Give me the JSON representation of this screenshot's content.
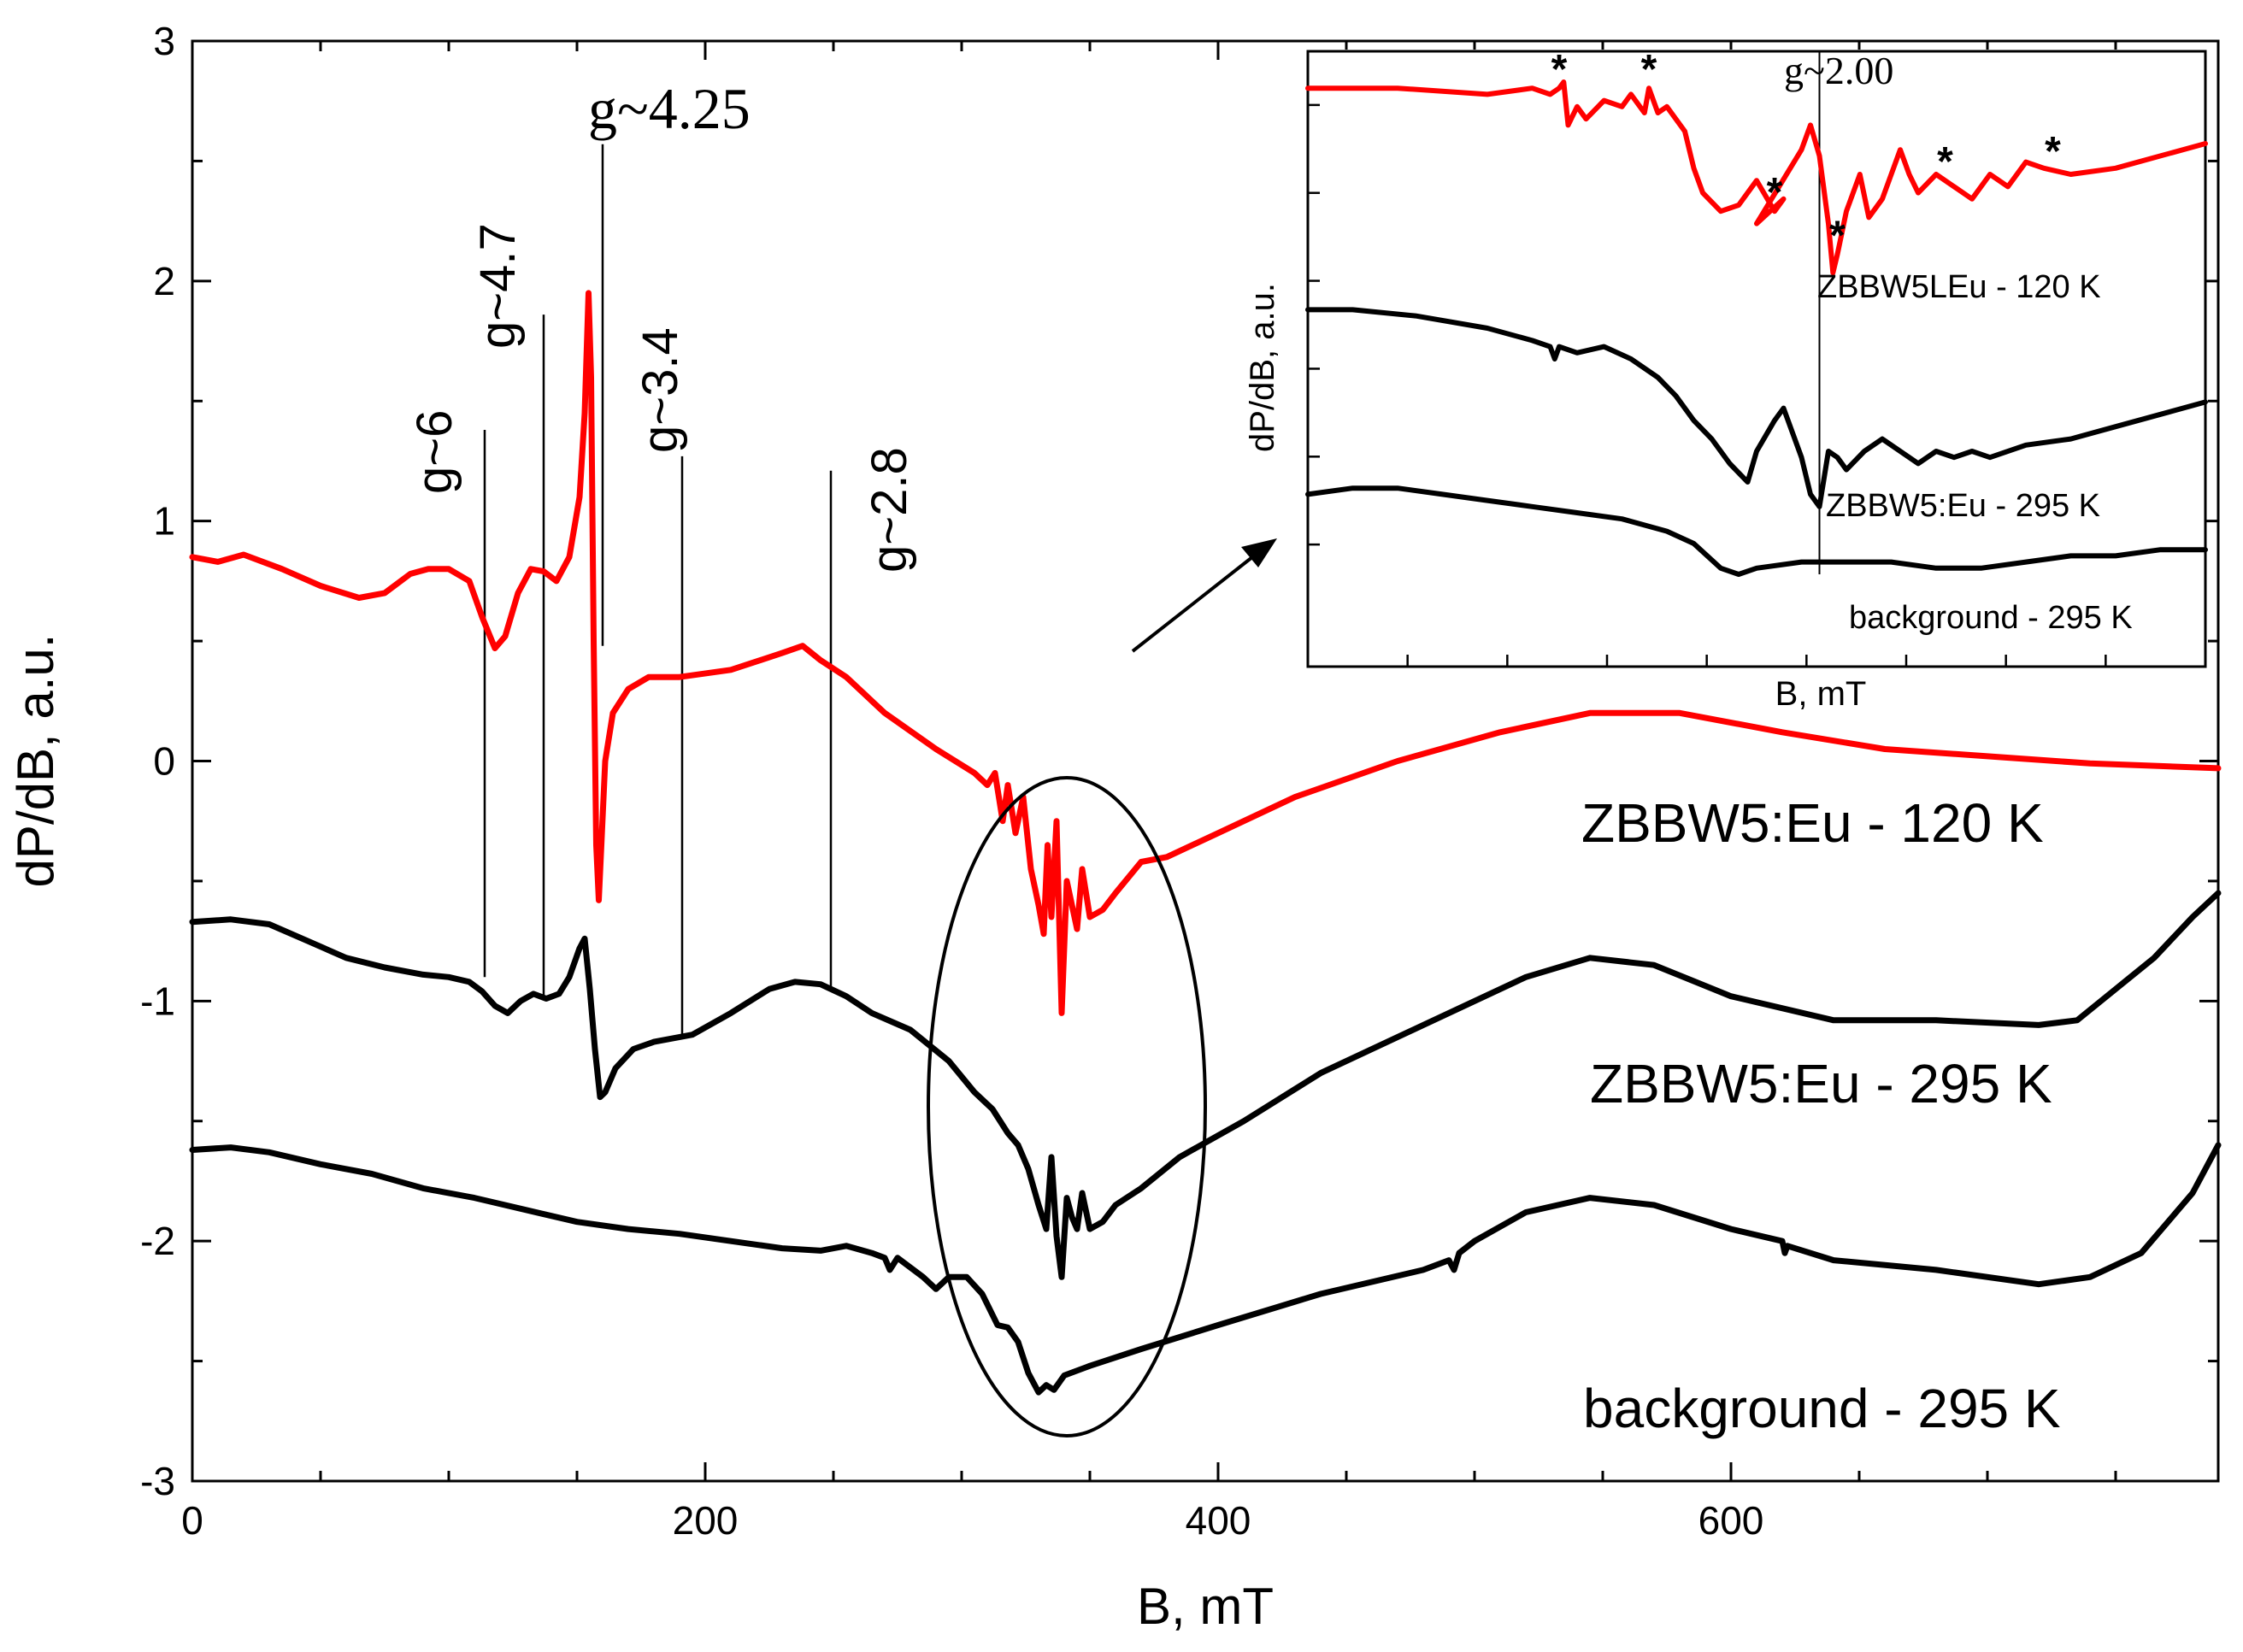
{
  "chart_data": [
    {
      "type": "line",
      "role": "main",
      "xlabel": "B, mT",
      "ylabel": "dP/dB, a.u.",
      "xlim": [
        0,
        790
      ],
      "ylim": [
        -3,
        3
      ],
      "xticks": [
        0,
        200,
        400,
        600
      ],
      "xtick_labels": [
        "0",
        "200",
        "400",
        "600"
      ],
      "yticks": [
        -3,
        -2,
        -1,
        0,
        1,
        2,
        3
      ],
      "ytick_labels": [
        "-3",
        "-2",
        "-1",
        "0",
        "1",
        "2",
        "3"
      ],
      "grid": false,
      "legend": "labels placed beside curves",
      "series": [
        {
          "name": "ZBBW5:Eu - 120 K",
          "color": "#ff0000",
          "x": [
            0,
            10,
            20,
            35,
            50,
            65,
            75,
            85,
            92,
            100,
            108,
            113,
            118,
            122,
            127,
            132,
            137,
            142,
            147,
            151,
            153,
            154.5,
            155.5,
            156.5,
            157.5,
            158.5,
            159.5,
            161,
            164,
            170,
            178,
            190,
            210,
            230,
            238,
            245,
            255,
            270,
            290,
            305,
            310,
            313,
            316,
            318,
            321,
            324,
            327,
            330,
            332,
            333.5,
            335,
            337,
            339,
            341,
            343,
            345,
            347,
            350,
            355,
            360,
            370,
            380,
            400,
            430,
            470,
            510,
            545,
            580,
            620,
            660,
            700,
            740,
            790
          ],
          "values": [
            0.85,
            0.83,
            0.86,
            0.8,
            0.73,
            0.68,
            0.7,
            0.78,
            0.8,
            0.8,
            0.75,
            0.6,
            0.47,
            0.52,
            0.7,
            0.8,
            0.79,
            0.75,
            0.85,
            1.1,
            1.45,
            1.95,
            1.6,
            0.5,
            -0.35,
            -0.58,
            -0.35,
            0.0,
            0.2,
            0.3,
            0.35,
            0.35,
            0.38,
            0.45,
            0.48,
            0.42,
            0.35,
            0.2,
            0.05,
            -0.05,
            -0.1,
            -0.05,
            -0.25,
            -0.1,
            -0.3,
            -0.15,
            -0.45,
            -0.6,
            -0.72,
            -0.35,
            -0.65,
            -0.25,
            -1.05,
            -0.5,
            -0.6,
            -0.7,
            -0.45,
            -0.65,
            -0.62,
            -0.55,
            -0.42,
            -0.4,
            -0.3,
            -0.15,
            0.0,
            0.12,
            0.2,
            0.2,
            0.12,
            0.05,
            0.02,
            -0.01,
            -0.03
          ]
        },
        {
          "name": "ZBBW5:Eu - 295 K",
          "color": "#000000",
          "x": [
            0,
            15,
            30,
            45,
            60,
            75,
            90,
            100,
            108,
            113,
            118,
            123,
            128,
            133,
            138,
            143,
            147,
            151,
            153,
            155,
            157,
            159,
            161,
            165,
            172,
            180,
            195,
            210,
            225,
            235,
            245,
            255,
            265,
            280,
            295,
            305,
            312,
            318,
            322,
            326,
            330,
            333,
            335,
            337,
            339,
            341,
            343,
            345,
            347,
            350,
            355,
            360,
            370,
            385,
            410,
            440,
            480,
            520,
            545,
            570,
            600,
            640,
            680,
            720,
            735,
            750,
            765,
            780,
            790
          ],
          "values": [
            -0.67,
            -0.66,
            -0.68,
            -0.75,
            -0.82,
            -0.86,
            -0.89,
            -0.9,
            -0.92,
            -0.96,
            -1.02,
            -1.05,
            -1.0,
            -0.97,
            -0.99,
            -0.97,
            -0.9,
            -0.78,
            -0.74,
            -0.95,
            -1.2,
            -1.4,
            -1.38,
            -1.28,
            -1.2,
            -1.17,
            -1.14,
            -1.05,
            -0.95,
            -0.92,
            -0.93,
            -0.98,
            -1.05,
            -1.12,
            -1.25,
            -1.38,
            -1.45,
            -1.55,
            -1.6,
            -1.7,
            -1.85,
            -1.95,
            -1.65,
            -1.98,
            -2.15,
            -1.82,
            -1.9,
            -1.95,
            -1.8,
            -1.95,
            -1.92,
            -1.85,
            -1.78,
            -1.65,
            -1.5,
            -1.3,
            -1.1,
            -0.9,
            -0.82,
            -0.85,
            -0.98,
            -1.08,
            -1.08,
            -1.1,
            -1.08,
            -0.95,
            -0.82,
            -0.65,
            -0.55
          ]
        },
        {
          "name": "background - 295 K",
          "color": "#000000",
          "x": [
            0,
            15,
            30,
            50,
            70,
            90,
            110,
            130,
            150,
            170,
            190,
            210,
            230,
            245,
            255,
            265,
            270,
            272,
            275,
            285,
            290,
            295,
            302,
            308,
            314,
            318,
            322,
            326,
            330,
            333,
            336,
            340,
            350,
            370,
            400,
            440,
            480,
            490,
            492,
            494,
            500,
            520,
            545,
            570,
            600,
            620,
            621,
            622,
            640,
            680,
            720,
            740,
            760,
            780,
            790
          ],
          "values": [
            -1.62,
            -1.61,
            -1.63,
            -1.68,
            -1.72,
            -1.78,
            -1.82,
            -1.87,
            -1.92,
            -1.95,
            -1.97,
            -2.0,
            -2.03,
            -2.04,
            -2.02,
            -2.05,
            -2.07,
            -2.12,
            -2.07,
            -2.15,
            -2.2,
            -2.15,
            -2.15,
            -2.22,
            -2.35,
            -2.36,
            -2.42,
            -2.55,
            -2.63,
            -2.6,
            -2.62,
            -2.56,
            -2.52,
            -2.45,
            -2.35,
            -2.22,
            -2.12,
            -2.08,
            -2.12,
            -2.05,
            -2.0,
            -1.88,
            -1.82,
            -1.85,
            -1.95,
            -2.0,
            -2.05,
            -2.02,
            -2.08,
            -2.12,
            -2.18,
            -2.15,
            -2.05,
            -1.8,
            -1.6
          ]
        }
      ],
      "vertical_markers": [
        {
          "x": 114,
          "y_top": 1.38,
          "y_bottom": -0.9
        },
        {
          "x": 137,
          "y_top": 1.86,
          "y_bottom": -0.98
        },
        {
          "x": 160,
          "y_top": 2.57,
          "y_bottom": 0.48
        },
        {
          "x": 191,
          "y_top": 1.27,
          "y_bottom": -1.14
        },
        {
          "x": 249,
          "y_top": 1.21,
          "y_bottom": -0.95
        }
      ],
      "annotations": [
        {
          "text": "g~6",
          "style": "rotated"
        },
        {
          "text": "g~4.7",
          "style": "rotated"
        },
        {
          "text": "g~4.25",
          "style": "serif"
        },
        {
          "text": "g~3.4",
          "style": "rotated"
        },
        {
          "text": "g~2.8",
          "style": "rotated"
        }
      ],
      "curve_labels": [
        "ZBBW5:Eu - 120 K",
        "ZBBW5:Eu - 295 K",
        "background - 295 K"
      ],
      "highlight": {
        "shape": "ellipse",
        "center_x": 340,
        "center_y": -1.65,
        "note": "region enlarged in inset"
      }
    },
    {
      "type": "line",
      "role": "inset",
      "xlabel": "B, mT",
      "ylabel": "dP/dB, a.u.",
      "xlim": [
        0,
        1
      ],
      "ylim": [
        0,
        1
      ],
      "tick_labels_shown": false,
      "grid": false,
      "series": [
        {
          "name": "ZBBW5LEu - 120 K",
          "color": "#ff0000",
          "x": [
            0,
            0.1,
            0.2,
            0.25,
            0.27,
            0.28,
            0.285,
            0.29,
            0.3,
            0.31,
            0.33,
            0.35,
            0.36,
            0.375,
            0.38,
            0.39,
            0.4,
            0.42,
            0.43,
            0.44,
            0.46,
            0.48,
            0.5,
            0.52,
            0.53,
            0.5,
            0.55,
            0.56,
            0.57,
            0.58,
            0.585,
            0.59,
            0.6,
            0.615,
            0.625,
            0.63,
            0.64,
            0.65,
            0.66,
            0.67,
            0.68,
            0.7,
            0.72,
            0.74,
            0.76,
            0.78,
            0.8,
            0.82,
            0.85,
            0.9,
            0.95,
            1.0
          ],
          "values": [
            0.94,
            0.94,
            0.93,
            0.94,
            0.93,
            0.94,
            0.95,
            0.88,
            0.91,
            0.89,
            0.92,
            0.91,
            0.93,
            0.9,
            0.94,
            0.9,
            0.91,
            0.87,
            0.81,
            0.77,
            0.74,
            0.75,
            0.79,
            0.74,
            0.76,
            0.72,
            0.84,
            0.88,
            0.83,
            0.72,
            0.64,
            0.67,
            0.74,
            0.8,
            0.73,
            0.74,
            0.76,
            0.8,
            0.84,
            0.8,
            0.77,
            0.8,
            0.78,
            0.76,
            0.8,
            0.78,
            0.82,
            0.81,
            0.8,
            0.81,
            0.83,
            0.85
          ]
        },
        {
          "name": "ZBBW5:Eu - 295 K",
          "color": "#000000",
          "x": [
            0,
            0.05,
            0.12,
            0.2,
            0.25,
            0.27,
            0.275,
            0.28,
            0.3,
            0.33,
            0.36,
            0.39,
            0.41,
            0.43,
            0.45,
            0.47,
            0.49,
            0.5,
            0.52,
            0.53,
            0.55,
            0.56,
            0.57,
            0.58,
            0.59,
            0.6,
            0.62,
            0.64,
            0.66,
            0.68,
            0.7,
            0.72,
            0.74,
            0.76,
            0.8,
            0.85,
            0.9,
            0.95,
            1.0
          ],
          "values": [
            0.58,
            0.58,
            0.57,
            0.55,
            0.53,
            0.52,
            0.5,
            0.52,
            0.51,
            0.52,
            0.5,
            0.47,
            0.44,
            0.4,
            0.37,
            0.33,
            0.3,
            0.35,
            0.4,
            0.42,
            0.34,
            0.28,
            0.26,
            0.35,
            0.34,
            0.32,
            0.35,
            0.37,
            0.35,
            0.33,
            0.35,
            0.34,
            0.35,
            0.34,
            0.36,
            0.37,
            0.39,
            0.41,
            0.43
          ]
        },
        {
          "name": "background - 295 K",
          "color": "#000000",
          "x": [
            0,
            0.05,
            0.1,
            0.15,
            0.2,
            0.25,
            0.3,
            0.35,
            0.4,
            0.43,
            0.46,
            0.48,
            0.5,
            0.55,
            0.6,
            0.65,
            0.7,
            0.75,
            0.8,
            0.85,
            0.9,
            0.95,
            1.0
          ],
          "values": [
            0.28,
            0.29,
            0.29,
            0.28,
            0.27,
            0.26,
            0.25,
            0.24,
            0.22,
            0.2,
            0.16,
            0.15,
            0.16,
            0.17,
            0.17,
            0.17,
            0.16,
            0.16,
            0.17,
            0.18,
            0.18,
            0.19,
            0.19
          ]
        }
      ],
      "vertical_markers": [
        {
          "x": 0.57,
          "y_top": 1.0,
          "y_bottom": 0.15
        }
      ],
      "annotations": [
        {
          "text": "g~2.00",
          "style": "serif"
        }
      ],
      "asterisk_marks": [
        0.28,
        0.38,
        0.52,
        0.59,
        0.71,
        0.83
      ],
      "curve_labels": [
        "ZBBW5LEu - 120 K",
        "ZBBW5:Eu - 295 K",
        "background - 295 K"
      ]
    }
  ]
}
